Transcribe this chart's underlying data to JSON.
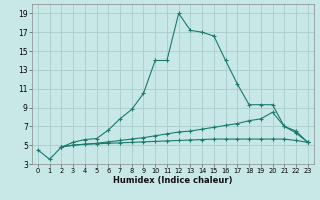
{
  "xlabel": "Humidex (Indice chaleur)",
  "background_color": "#c8e8e8",
  "grid_color": "#a8cccc",
  "line_color": "#1a7a6e",
  "xlim": [
    -0.5,
    23.5
  ],
  "ylim": [
    3,
    20
  ],
  "yticks": [
    3,
    5,
    7,
    9,
    11,
    13,
    15,
    17,
    19
  ],
  "xticks": [
    0,
    1,
    2,
    3,
    4,
    5,
    6,
    7,
    8,
    9,
    10,
    11,
    12,
    13,
    14,
    15,
    16,
    17,
    18,
    19,
    20,
    21,
    22,
    23
  ],
  "series1_x": [
    0,
    1,
    2,
    3,
    4,
    5,
    6,
    7,
    8,
    9,
    10,
    11,
    12,
    13,
    14,
    15,
    16,
    17,
    18,
    19,
    20,
    21,
    22,
    23
  ],
  "series1_y": [
    4.5,
    3.5,
    4.8,
    5.3,
    5.6,
    5.7,
    6.6,
    7.8,
    8.8,
    10.5,
    14.0,
    14.0,
    19.0,
    17.2,
    17.0,
    16.6,
    14.0,
    11.5,
    9.3,
    9.3,
    9.3,
    7.0,
    6.3,
    5.3
  ],
  "series2_x": [
    2,
    3,
    4,
    5,
    6,
    7,
    8,
    9,
    10,
    11,
    12,
    13,
    14,
    15,
    16,
    17,
    18,
    19,
    20,
    21,
    22,
    23
  ],
  "series2_y": [
    4.8,
    5.0,
    5.1,
    5.2,
    5.35,
    5.5,
    5.65,
    5.8,
    6.0,
    6.2,
    6.4,
    6.5,
    6.7,
    6.9,
    7.1,
    7.3,
    7.6,
    7.8,
    8.5,
    7.0,
    6.5,
    5.3
  ],
  "series3_x": [
    2,
    3,
    4,
    5,
    6,
    7,
    8,
    9,
    10,
    11,
    12,
    13,
    14,
    15,
    16,
    17,
    18,
    19,
    20,
    21,
    22,
    23
  ],
  "series3_y": [
    4.8,
    5.0,
    5.1,
    5.15,
    5.2,
    5.25,
    5.3,
    5.35,
    5.4,
    5.45,
    5.5,
    5.55,
    5.6,
    5.65,
    5.65,
    5.65,
    5.65,
    5.65,
    5.65,
    5.65,
    5.5,
    5.3
  ]
}
